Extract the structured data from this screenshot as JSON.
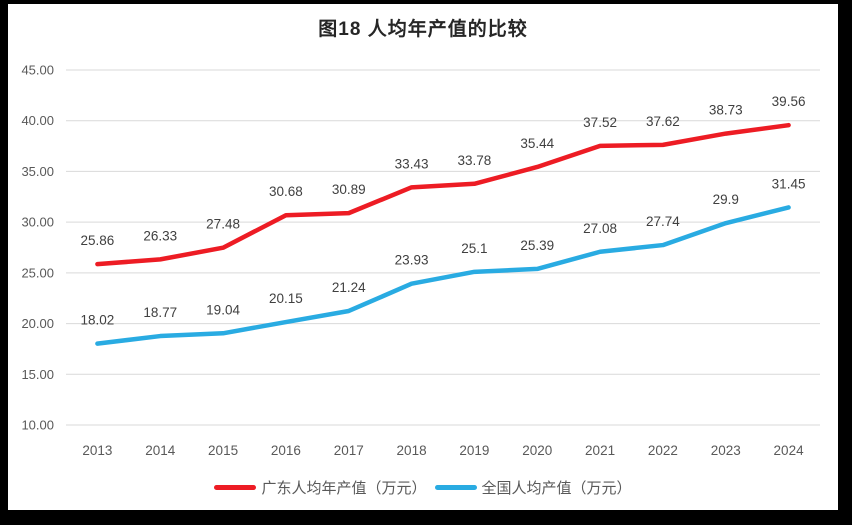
{
  "frame": {
    "border_color": "#000000",
    "page_background": "#ffffff"
  },
  "chart_data": {
    "type": "line",
    "title": "图18 人均年产值的比较",
    "categories": [
      "2013",
      "2014",
      "2015",
      "2016",
      "2017",
      "2018",
      "2019",
      "2020",
      "2021",
      "2022",
      "2023",
      "2024"
    ],
    "series": [
      {
        "name": "广东人均年产值（万元）",
        "color": "#ED1C24",
        "values": [
          25.86,
          26.33,
          27.48,
          30.68,
          30.89,
          33.43,
          33.78,
          35.44,
          37.52,
          37.62,
          38.73,
          39.56
        ]
      },
      {
        "name": "全国人均产值（万元）",
        "color": "#29ABE2",
        "values": [
          18.02,
          18.77,
          19.04,
          20.15,
          21.24,
          23.93,
          25.1,
          25.39,
          27.08,
          27.74,
          29.9,
          31.45
        ]
      }
    ],
    "xlabel": "",
    "ylabel": "",
    "ylim": [
      10,
      45
    ],
    "yticks": [
      {
        "value": 45,
        "label": "45.00"
      },
      {
        "value": 40,
        "label": "40.00"
      },
      {
        "value": 35,
        "label": "35.00"
      },
      {
        "value": 30,
        "label": "30.00"
      },
      {
        "value": 25,
        "label": "25.00"
      },
      {
        "value": 20,
        "label": "20.00"
      },
      {
        "value": 15,
        "label": "15.00"
      },
      {
        "value": 10,
        "label": "10.00"
      }
    ],
    "grid": "horizontal",
    "grid_color": "#d9d9d9",
    "data_labels": true,
    "legend_position": "bottom"
  }
}
